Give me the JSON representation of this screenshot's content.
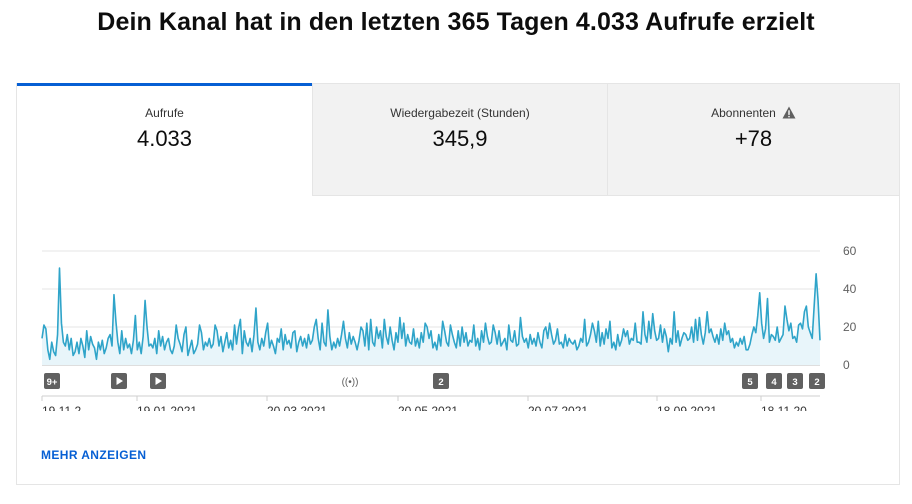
{
  "headline": "Dein Kanal hat in den letzten 365 Tagen 4.033 Aufrufe erzielt",
  "tabs": [
    {
      "label": "Aufrufe",
      "value": "4.033",
      "active": true
    },
    {
      "label": "Wiedergabezeit (Stunden)",
      "value": "345,9",
      "active": false
    },
    {
      "label": "Abonnenten",
      "value": "+78",
      "active": false,
      "warning_icon": "warning-icon"
    }
  ],
  "more_label": "MEHR ANZEIGEN",
  "colors": {
    "accent": "#065fd4",
    "line": "#2fa4c9",
    "fill": "#e8f5fa",
    "marker": "#606060"
  },
  "markers": [
    {
      "label": "9+",
      "icon": ""
    },
    {
      "label": "",
      "icon": "play-icon"
    },
    {
      "label": "",
      "icon": "play-icon"
    },
    {
      "label": "",
      "icon": "live-icon"
    },
    {
      "label": "2",
      "icon": ""
    },
    {
      "label": "5",
      "icon": ""
    },
    {
      "label": "4",
      "icon": ""
    },
    {
      "label": "3",
      "icon": ""
    },
    {
      "label": "2",
      "icon": ""
    }
  ],
  "chart_data": {
    "type": "area",
    "title": "",
    "xlabel": "",
    "ylabel": "",
    "ylim": [
      0,
      60
    ],
    "y_ticks": [
      "0",
      "20",
      "40",
      "60"
    ],
    "x_ticks": [
      "19.11.2...",
      "19.01.2021",
      "20.03.2021",
      "20.05.2021",
      "20.07.2021",
      "18.09.2021",
      "18.11.20..."
    ],
    "grid": true,
    "legend": "none",
    "series": [
      {
        "values": [
          14,
          21,
          19,
          8,
          3,
          12,
          7,
          5,
          16,
          51,
          22,
          12,
          10,
          16,
          8,
          14,
          5,
          7,
          12,
          6,
          14,
          10,
          4,
          18,
          8,
          15,
          11,
          9,
          3,
          12,
          8,
          13,
          6,
          9,
          14,
          16,
          10,
          37,
          23,
          12,
          6,
          18,
          8,
          14,
          9,
          11,
          6,
          13,
          26,
          8,
          12,
          6,
          15,
          34,
          20,
          10,
          11,
          9,
          14,
          6,
          18,
          10,
          15,
          8,
          12,
          14,
          8,
          6,
          10,
          21,
          14,
          11,
          7,
          16,
          20,
          5,
          9,
          13,
          6,
          8,
          11,
          21,
          17,
          8,
          12,
          10,
          14,
          9,
          11,
          21,
          18,
          10,
          15,
          7,
          12,
          17,
          9,
          13,
          8,
          21,
          11,
          19,
          24,
          6,
          18,
          12,
          10,
          14,
          7,
          16,
          30,
          12,
          8,
          14,
          10,
          17,
          22,
          9,
          13,
          10,
          6,
          14,
          12,
          19,
          8,
          16,
          11,
          13,
          9,
          17,
          18,
          7,
          12,
          15,
          10,
          14,
          9,
          16,
          11,
          13,
          20,
          24,
          14,
          8,
          22,
          12,
          10,
          29,
          15,
          8,
          12,
          9,
          14,
          10,
          16,
          23,
          14,
          9,
          17,
          11,
          15,
          12,
          8,
          13,
          20,
          18,
          10,
          22,
          8,
          24,
          12,
          10,
          20,
          14,
          18,
          9,
          24,
          15,
          11,
          20,
          13,
          8,
          17,
          12,
          25,
          14,
          22,
          10,
          16,
          12,
          11,
          19,
          10,
          14,
          9,
          17,
          12,
          22,
          20,
          14,
          18,
          9,
          12,
          8,
          16,
          10,
          23,
          18,
          12,
          10,
          21,
          16,
          12,
          9,
          18,
          10,
          20,
          12,
          17,
          10,
          13,
          12,
          21,
          10,
          14,
          8,
          18,
          12,
          22,
          15,
          11,
          12,
          21,
          17,
          11,
          18,
          10,
          12,
          14,
          8,
          21,
          13,
          12,
          18,
          10,
          11,
          25,
          15,
          12,
          14,
          9,
          16,
          11,
          14,
          10,
          17,
          12,
          9,
          18,
          20,
          14,
          22,
          16,
          11,
          13,
          19,
          11,
          12,
          9,
          16,
          10,
          14,
          12,
          11,
          13,
          8,
          10,
          14,
          12,
          24,
          10,
          12,
          16,
          22,
          18,
          12,
          23,
          10,
          17,
          11,
          19,
          14,
          23,
          9,
          12,
          8,
          16,
          10,
          13,
          19,
          15,
          18,
          11,
          14,
          13,
          22,
          12,
          12,
          11,
          28,
          16,
          12,
          23,
          14,
          27,
          18,
          13,
          14,
          21,
          12,
          19,
          15,
          7,
          14,
          11,
          28,
          12,
          18,
          10,
          14,
          17,
          16,
          13,
          14,
          20,
          12,
          24,
          13,
          25,
          16,
          11,
          17,
          28,
          17,
          19,
          15,
          12,
          16,
          11,
          19,
          13,
          22,
          16,
          18,
          12,
          14,
          9,
          12,
          10,
          14,
          11,
          15,
          8,
          8,
          11,
          16,
          20,
          17,
          26,
          38,
          22,
          14,
          19,
          35,
          12,
          16,
          15,
          13,
          20,
          12,
          14,
          16,
          31,
          24,
          18,
          22,
          14,
          15,
          12,
          21,
          22,
          19,
          28,
          31,
          20,
          17,
          14,
          31,
          48,
          34,
          13
        ]
      }
    ]
  }
}
